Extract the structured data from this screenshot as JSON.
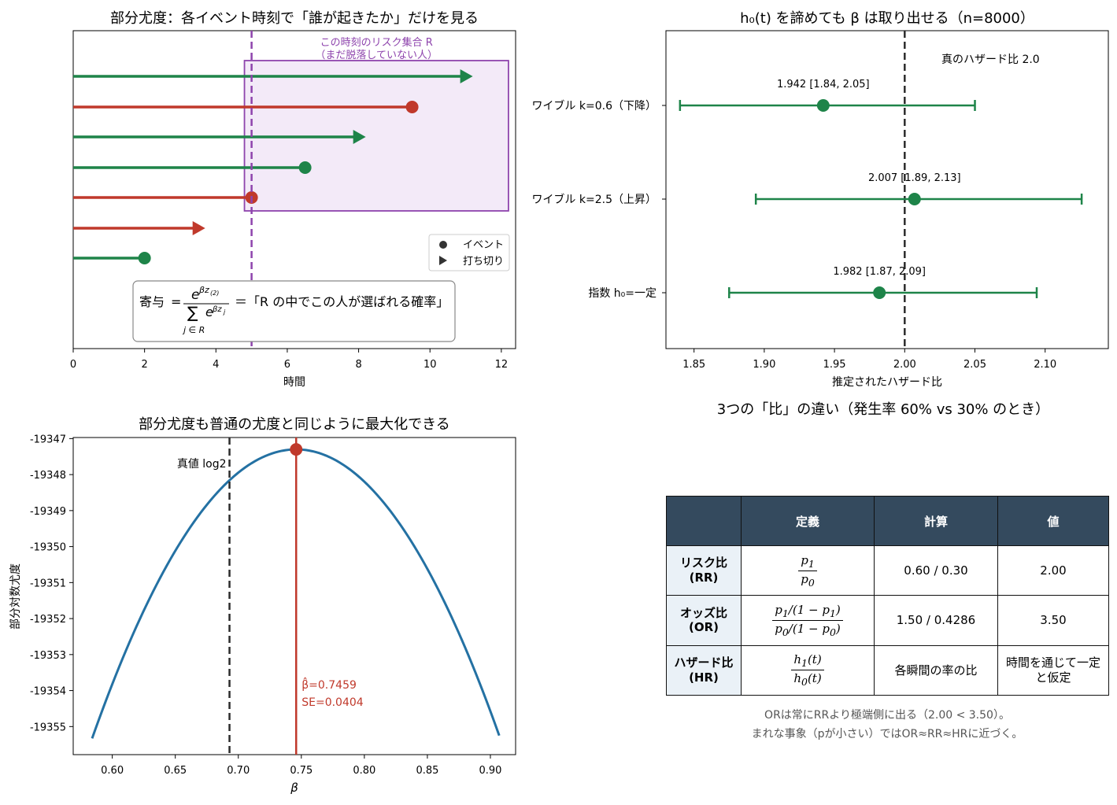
{
  "colors": {
    "green": "#1e8449",
    "red": "#c0392b",
    "purple": "#8e44ad",
    "blue": "#2471a3",
    "dark": "#2c2c2c",
    "header_bg": "#344a5e",
    "rowhead_bg": "#eaf1f7"
  },
  "chart_data": [
    {
      "type": "timeline",
      "title": "部分尤度：各イベント時刻で「誰が起きたか」だけを見る",
      "xlabel": "時間",
      "xlim": [
        0,
        12.4
      ],
      "xticks": [
        "0",
        "2",
        "4",
        "6",
        "8",
        "10",
        "12"
      ],
      "event_time": 5.0,
      "risk_set_label_line1": "この時刻のリスク集合 R",
      "risk_set_label_line2": "（まだ脱落していない人）",
      "risk_set_box_start": 4.8,
      "risk_set_box_end": 12.2,
      "subjects": [
        {
          "end": 11.2,
          "status": "censored",
          "color": "green"
        },
        {
          "end": 9.5,
          "status": "event",
          "color": "red"
        },
        {
          "end": 8.2,
          "status": "censored",
          "color": "green"
        },
        {
          "end": 6.5,
          "status": "event",
          "color": "green"
        },
        {
          "end": 5.0,
          "status": "event",
          "color": "red"
        },
        {
          "end": 3.7,
          "status": "censored",
          "color": "red"
        },
        {
          "end": 2.0,
          "status": "event",
          "color": "green"
        }
      ],
      "legend": [
        {
          "marker": "circle",
          "label": "イベント"
        },
        {
          "marker": "triangle",
          "label": "打ち切り"
        }
      ],
      "formula_prefix": "寄与",
      "formula_suffix": "＝「R の中でこの人が選ばれる確率」"
    },
    {
      "type": "forest",
      "title": "h₀(t) を諦めても β は取り出せる（n=8000）",
      "xlabel": "推定されたハザード比",
      "xlim": [
        1.83,
        2.145
      ],
      "xticks": [
        "1.85",
        "1.90",
        "1.95",
        "2.00",
        "2.05",
        "2.10"
      ],
      "true_value": 2.0,
      "true_label": "真のハザード比 2.0",
      "rows": [
        {
          "label": "ワイブル k=0.6（下降）",
          "estimate": 1.942,
          "lower": 1.84,
          "upper": 2.05,
          "annotation": "1.942 [1.84, 2.05]"
        },
        {
          "label": "ワイブル k=2.5（上昇）",
          "estimate": 2.007,
          "lower": 1.894,
          "upper": 2.126,
          "annotation": "2.007 [1.89, 2.13]"
        },
        {
          "label": "指数 h₀=一定",
          "estimate": 1.982,
          "lower": 1.875,
          "upper": 2.094,
          "annotation": "1.982 [1.87, 2.09]"
        }
      ]
    },
    {
      "type": "line",
      "title": "部分尤度も普通の尤度と同じように最大化できる",
      "xlabel": "β",
      "ylabel": "部分対数尤度",
      "xlim": [
        0.569,
        0.92
      ],
      "ylim": [
        -19355.78,
        -19346.97
      ],
      "xticks": [
        "0.60",
        "0.65",
        "0.70",
        "0.75",
        "0.80",
        "0.85",
        "0.90"
      ],
      "yticks": [
        "-19347",
        "-19348",
        "-19349",
        "-19350",
        "-19351",
        "-19352",
        "-19353",
        "-19354",
        "-19355"
      ],
      "curve": {
        "vertex_x": 0.7459,
        "vertex_y": -19347.3,
        "se": 0.0404,
        "x_start": 0.584,
        "x_end": 0.907
      },
      "true_beta": 0.693,
      "true_label": "真値 log2",
      "mle_label_line1": "β̂=0.7459",
      "mle_label_line2": "SE=0.0404"
    },
    {
      "type": "table",
      "title": "3つの「比」の違い（発生率 60% vs 30% のとき）",
      "columns": [
        "",
        "定義",
        "計算",
        "値"
      ],
      "rows": [
        {
          "name_line1": "リスク比",
          "name_line2": "(RR)",
          "calc": "0.60 / 0.30",
          "value": "2.00"
        },
        {
          "name_line1": "オッズ比",
          "name_line2": "(OR)",
          "calc": "1.50 / 0.4286",
          "value": "3.50"
        },
        {
          "name_line1": "ハザード比",
          "name_line2": "(HR)",
          "calc": "各瞬間の率の比",
          "value_line1": "時間を通じて一定",
          "value_line2": "と仮定"
        }
      ],
      "note_line1": "ORは常にRRより極端側に出る（2.00 < 3.50）。",
      "note_line2": "まれな事象（pが小さい）ではOR≈RR≈HRに近づく。"
    }
  ]
}
